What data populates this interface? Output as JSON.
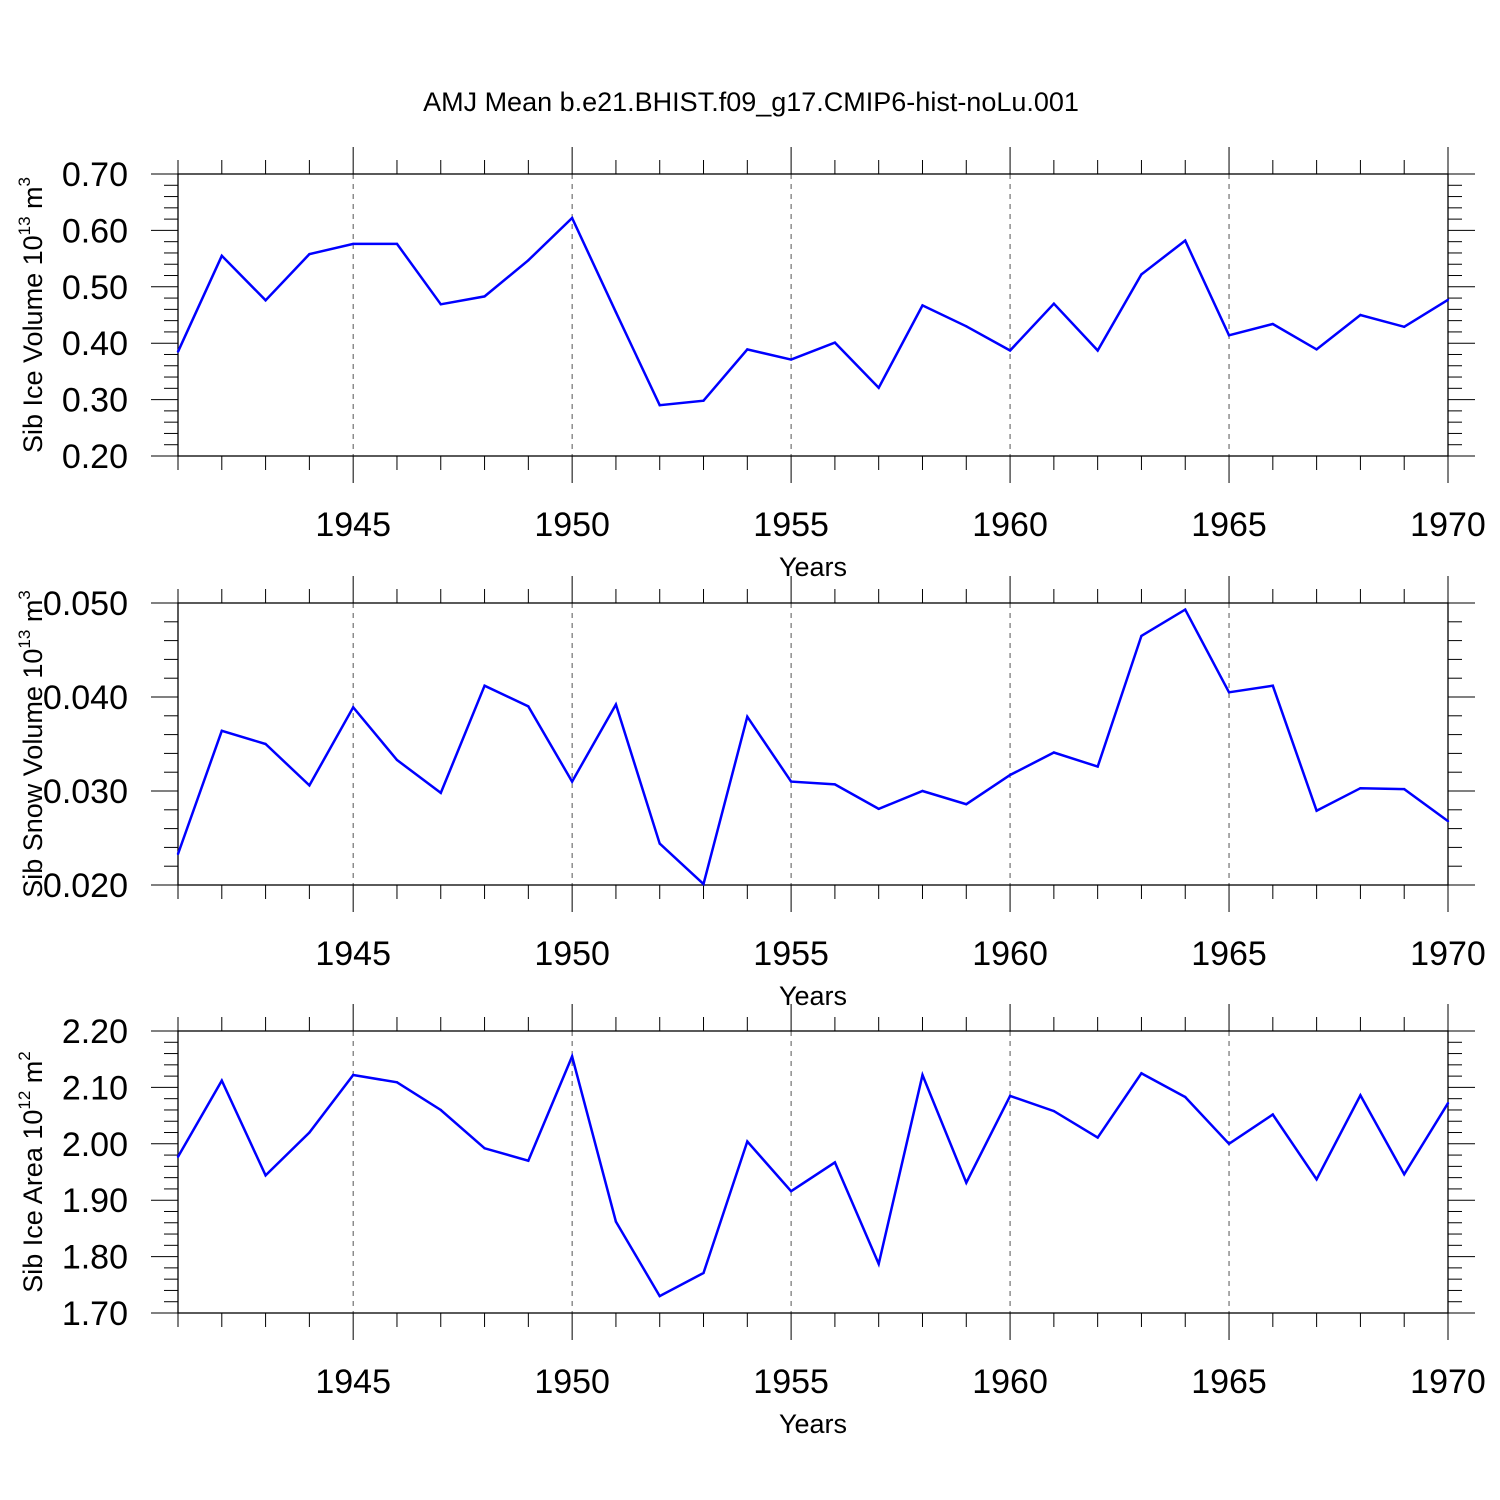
{
  "chart_data": [
    {
      "type": "line",
      "title": "AMJ Mean b.e21.BHIST.f09_g17.CMIP6-hist-noLu.001",
      "ylabel": {
        "prefix": "Sib Ice Volume 10",
        "exp": "13",
        "unit": " m",
        "unit_exp": "3"
      },
      "xlabel": "Years",
      "xlim": [
        1941,
        1970
      ],
      "ylim": [
        0.2,
        0.7
      ],
      "xticks": [
        1945,
        1950,
        1955,
        1960,
        1965,
        1970
      ],
      "yticks": [
        "0.70",
        "0.60",
        "0.50",
        "0.40",
        "0.30",
        "0.20"
      ],
      "grid": "vertical dashed at major x ticks",
      "color": "#0000ff",
      "x": [
        1941,
        1942,
        1943,
        1944,
        1945,
        1946,
        1947,
        1948,
        1949,
        1950,
        1951,
        1952,
        1953,
        1954,
        1955,
        1956,
        1957,
        1958,
        1959,
        1960,
        1961,
        1962,
        1963,
        1964,
        1965,
        1966,
        1967,
        1968,
        1969,
        1970
      ],
      "values": [
        0.385,
        0.555,
        0.476,
        0.558,
        0.576,
        0.576,
        0.469,
        0.483,
        0.547,
        0.622,
        0.455,
        0.29,
        0.298,
        0.389,
        0.371,
        0.401,
        0.321,
        0.467,
        0.43,
        0.387,
        0.47,
        0.387,
        0.522,
        0.582,
        0.414,
        0.434,
        0.389,
        0.45,
        0.429,
        0.477
      ]
    },
    {
      "type": "line",
      "title": "",
      "ylabel": {
        "prefix": "Sib Snow Volume 10",
        "exp": "13",
        "unit": " m",
        "unit_exp": "3"
      },
      "xlabel": "Years",
      "xlim": [
        1941,
        1970
      ],
      "ylim": [
        0.02,
        0.05
      ],
      "xticks": [
        1945,
        1950,
        1955,
        1960,
        1965,
        1970
      ],
      "yticks": [
        "0.050",
        "0.040",
        "0.030",
        "0.020"
      ],
      "grid": "vertical dashed at major x ticks",
      "color": "#0000ff",
      "x": [
        1941,
        1942,
        1943,
        1944,
        1945,
        1946,
        1947,
        1948,
        1949,
        1950,
        1951,
        1952,
        1953,
        1954,
        1955,
        1956,
        1957,
        1958,
        1959,
        1960,
        1961,
        1962,
        1963,
        1964,
        1965,
        1966,
        1967,
        1968,
        1969,
        1970
      ],
      "values": [
        0.0233,
        0.0364,
        0.035,
        0.0306,
        0.0389,
        0.0333,
        0.0298,
        0.0412,
        0.039,
        0.031,
        0.0392,
        0.0244,
        0.0201,
        0.0379,
        0.031,
        0.0307,
        0.0281,
        0.03,
        0.0286,
        0.0317,
        0.0341,
        0.0326,
        0.0465,
        0.0493,
        0.0405,
        0.0412,
        0.0279,
        0.0303,
        0.0302,
        0.0268
      ]
    },
    {
      "type": "line",
      "title": "",
      "ylabel": {
        "prefix": "Sib Ice Area 10",
        "exp": "12",
        "unit": " m",
        "unit_exp": "2"
      },
      "xlabel": "Years",
      "xlim": [
        1941,
        1970
      ],
      "ylim": [
        1.7,
        2.2
      ],
      "xticks": [
        1945,
        1950,
        1955,
        1960,
        1965,
        1970
      ],
      "yticks": [
        "2.20",
        "2.10",
        "2.00",
        "1.90",
        "1.80",
        "1.70"
      ],
      "grid": "vertical dashed at major x ticks",
      "color": "#0000ff",
      "x": [
        1941,
        1942,
        1943,
        1944,
        1945,
        1946,
        1947,
        1948,
        1949,
        1950,
        1951,
        1952,
        1953,
        1954,
        1955,
        1956,
        1957,
        1958,
        1959,
        1960,
        1961,
        1962,
        1963,
        1964,
        1965,
        1966,
        1967,
        1968,
        1969,
        1970
      ],
      "values": [
        1.977,
        2.112,
        1.944,
        2.02,
        2.122,
        2.109,
        2.06,
        1.992,
        1.97,
        2.155,
        1.862,
        1.73,
        1.771,
        2.004,
        1.916,
        1.967,
        1.787,
        2.122,
        1.931,
        2.085,
        2.058,
        2.011,
        2.125,
        2.083,
        2.0,
        2.052,
        1.937,
        2.086,
        1.946,
        2.072
      ]
    }
  ]
}
